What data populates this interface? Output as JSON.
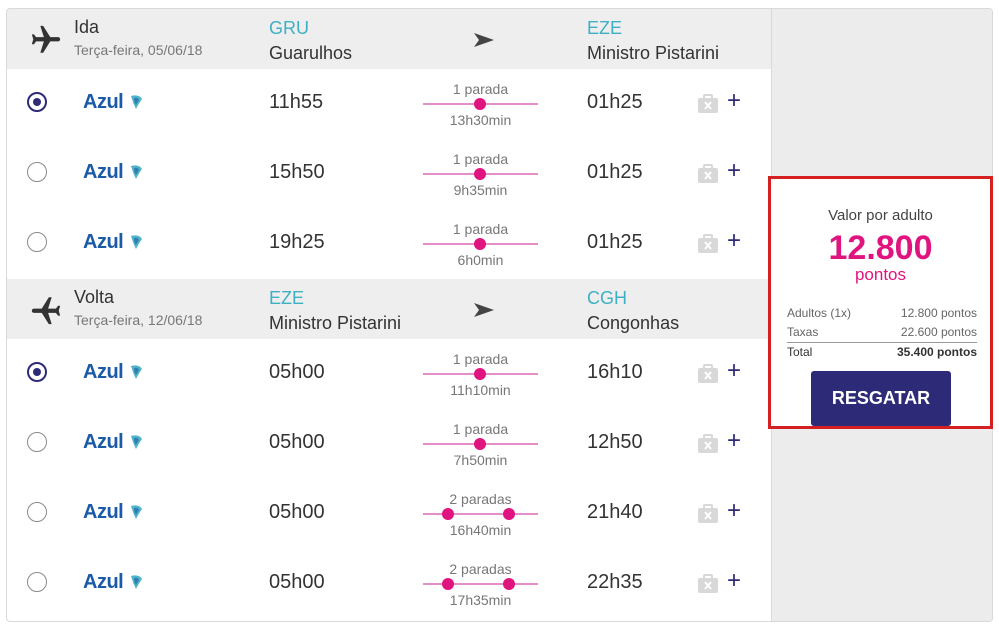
{
  "outbound": {
    "title": "Ida",
    "date": "Terça-feira, 05/06/18",
    "origin_code": "GRU",
    "origin_name": "Guarulhos",
    "dest_code": "EZE",
    "dest_name": "Ministro Pistarini",
    "flights": [
      {
        "airline": "Azul",
        "dep": "11h55",
        "stops": "1 parada",
        "duration": "13h30min",
        "arr": "01h25",
        "selected": true
      },
      {
        "airline": "Azul",
        "dep": "15h50",
        "stops": "1 parada",
        "duration": "9h35min",
        "arr": "01h25",
        "selected": false
      },
      {
        "airline": "Azul",
        "dep": "19h25",
        "stops": "1 parada",
        "duration": "6h0min",
        "arr": "01h25",
        "selected": false
      }
    ]
  },
  "inbound": {
    "title": "Volta",
    "date": "Terça-feira, 12/06/18",
    "origin_code": "EZE",
    "origin_name": "Ministro Pistarini",
    "dest_code": "CGH",
    "dest_name": "Congonhas",
    "flights": [
      {
        "airline": "Azul",
        "dep": "05h00",
        "stops": "1 parada",
        "duration": "11h10min",
        "arr": "16h10",
        "selected": true
      },
      {
        "airline": "Azul",
        "dep": "05h00",
        "stops": "1 parada",
        "duration": "7h50min",
        "arr": "12h50",
        "selected": false
      },
      {
        "airline": "Azul",
        "dep": "05h00",
        "stops": "2 paradas",
        "duration": "16h40min",
        "arr": "21h40",
        "selected": false
      },
      {
        "airline": "Azul",
        "dep": "05h00",
        "stops": "2 paradas",
        "duration": "17h35min",
        "arr": "22h35",
        "selected": false
      }
    ]
  },
  "summary": {
    "label": "Valor por adulto",
    "value": "12.800",
    "unit": "pontos",
    "adults_label": "Adultos (1x)",
    "adults_value": "12.800 pontos",
    "taxes_label": "Taxas",
    "taxes_value": "22.600 pontos",
    "total_label": "Total",
    "total_value": "35.400 pontos",
    "button_label": "RESGATAR"
  },
  "colors": {
    "accent": "#e0147f",
    "brand": "#2d2a78",
    "code": "#3db0c4",
    "highlight": "#d42020"
  },
  "icons": {
    "plane": "airplane-icon",
    "arrow": "arrow-right-icon",
    "baggage": "baggage-icon",
    "plus": "plus-icon"
  },
  "plus_symbol": "+"
}
